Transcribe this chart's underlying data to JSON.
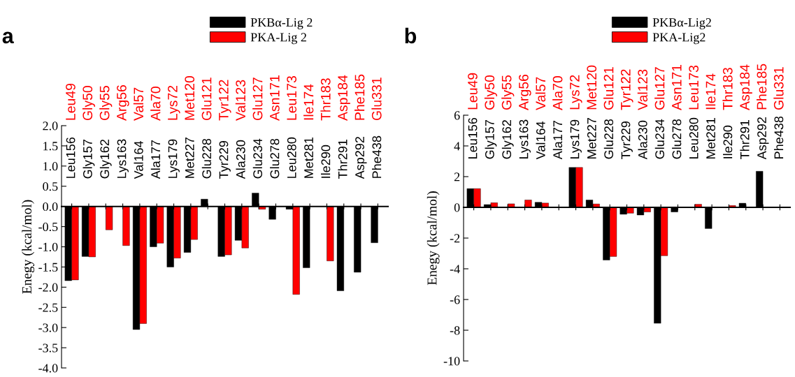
{
  "chart_data": [
    {
      "type": "bar",
      "title": "a",
      "ylabel": "Enegy (kcal/mol)",
      "legend": "top",
      "categories": [
        "Leu156",
        "Gly157",
        "Gly162",
        "Lys163",
        "Val164",
        "Ala177",
        "Lys179",
        "Met227",
        "Glu228",
        "Tyr229",
        "Ala230",
        "Glu234",
        "Glu278",
        "Leu280",
        "Met281",
        "Ile290",
        "Thr291",
        "Asp292",
        "Phe438"
      ],
      "series": [
        {
          "name": "PKBα-Lig 2",
          "color": "#000000",
          "values": [
            -1.84,
            -1.24,
            null,
            null,
            -3.05,
            -1.0,
            -1.5,
            -1.14,
            0.18,
            -1.24,
            -0.84,
            0.33,
            -0.32,
            -0.07,
            -1.52,
            null,
            -2.09,
            -1.63,
            -0.9
          ]
        },
        {
          "name": "PKA-Lig 2",
          "color": "#ff0000",
          "values": [
            -1.82,
            -1.25,
            -0.58,
            -0.97,
            -2.9,
            -0.91,
            -1.28,
            -0.82,
            null,
            -1.2,
            -1.03,
            -0.07,
            null,
            -2.18,
            null,
            -1.35,
            null,
            null,
            null
          ]
        }
      ],
      "ylim": [
        -4.0,
        2.0
      ],
      "yticks": [
        {
          "value": 2.0,
          "label": "2.0"
        },
        {
          "value": 1.5,
          "label": "1.5"
        },
        {
          "value": 1.0,
          "label": "1.0"
        },
        {
          "value": 0.5,
          "label": "0.5"
        },
        {
          "value": 0,
          "label": "0.0"
        },
        {
          "value": -0.5,
          "label": "-0.5"
        },
        {
          "value": -1.0,
          "label": "-1.0"
        },
        {
          "value": -1.5,
          "label": "-1.5"
        },
        {
          "value": -2.0,
          "label": "-2.0"
        },
        {
          "value": -2.5,
          "label": "-2.5"
        },
        {
          "value": -3.0,
          "label": "-3.0"
        },
        {
          "value": -3.5,
          "label": "-3.5"
        },
        {
          "value": -4.0,
          "label": "-4.0"
        }
      ],
      "annotations": [
        "Leu49",
        "Gly50",
        "Gly55",
        "Arg56",
        "Val57",
        "Ala70",
        "Lys72",
        "Met120",
        "Glu121",
        "Tyr122",
        "Val123",
        "Glu127",
        "Asn171",
        "Leu173",
        "Ile174",
        "Thr183",
        "Asp184",
        "Phe185",
        "Glu331"
      ]
    },
    {
      "type": "bar",
      "title": "b",
      "ylabel": "Enegy (kcal/mol)",
      "legend": "top",
      "categories": [
        "Leu156",
        "Gly157",
        "Gly162",
        "Lys163",
        "Val164",
        "Ala177",
        "Lys179",
        "Met227",
        "Glu228",
        "Tyr229",
        "Ala230",
        "Glu234",
        "Glu278",
        "Leu280",
        "Met281",
        "Ile290",
        "Thr291",
        "Asp292",
        "Phe438"
      ],
      "series": [
        {
          "name": "PKBα-Lig2",
          "color": "#000000",
          "values": [
            1.22,
            0.18,
            null,
            null,
            0.33,
            null,
            2.6,
            0.48,
            -3.43,
            -0.45,
            -0.5,
            -7.55,
            -0.3,
            null,
            -1.38,
            null,
            0.27,
            2.35,
            null
          ]
        },
        {
          "name": "PKA-Lig2",
          "color": "#ff0000",
          "values": [
            1.22,
            0.3,
            0.23,
            0.48,
            0.28,
            null,
            2.6,
            0.22,
            -3.2,
            -0.38,
            -0.3,
            -3.15,
            null,
            0.2,
            null,
            0.12,
            null,
            null,
            null
          ]
        }
      ],
      "ylim": [
        -10,
        6
      ],
      "yticks": [
        6,
        4,
        2,
        0,
        -2,
        -4,
        -6,
        -8,
        -10
      ],
      "annotations": [
        "Leu49",
        "Gly50",
        "Gly55",
        "Arg56",
        "Val57",
        "Ala70",
        "Lys72",
        "Met120",
        "Glu121",
        "Tyr122",
        "Val123",
        "Glu127",
        "Asn171",
        "Leu173",
        "Ile174",
        "Thr183",
        "Asp184",
        "Phe185",
        "Glu331"
      ]
    }
  ]
}
